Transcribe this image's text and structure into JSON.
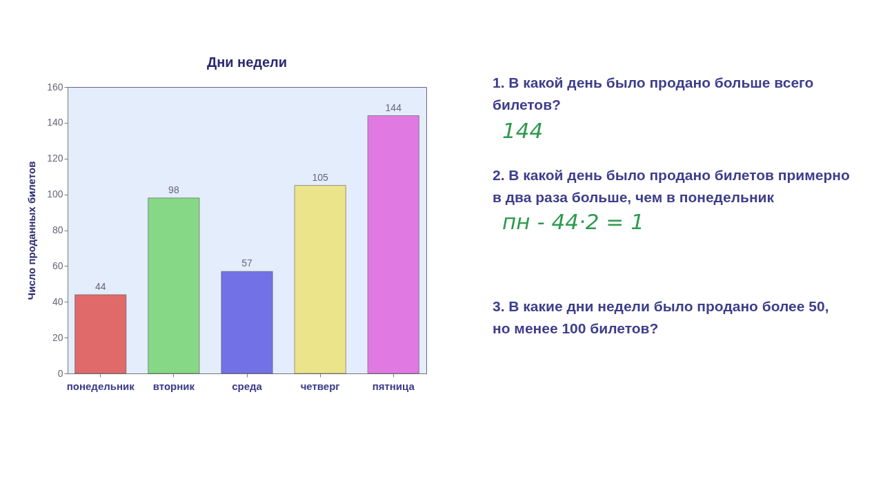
{
  "chart_data": {
    "type": "bar",
    "title": "Дни недели",
    "ylabel": "Число проданных билетов",
    "categories": [
      "понедельник",
      "вторник",
      "среда",
      "четверг",
      "пятница"
    ],
    "values": [
      44,
      98,
      57,
      105,
      144
    ],
    "colors": [
      "#e06a6a",
      "#86d886",
      "#7272e6",
      "#ebe48a",
      "#e07ae2"
    ],
    "ylim": [
      0,
      160
    ],
    "yticks": [
      0,
      20,
      40,
      60,
      80,
      100,
      120,
      140,
      160
    ],
    "data_labels": true,
    "annotations": [
      "1. В какой день было продано больше всего билетов?",
      "144",
      "2. В какой день было продано билетов примерно в два раза больше, чем в понедельник",
      "пн - 44·2 = 1",
      "3. В какие дни недели было продано более 50, но менее 100 билетов?"
    ]
  }
}
